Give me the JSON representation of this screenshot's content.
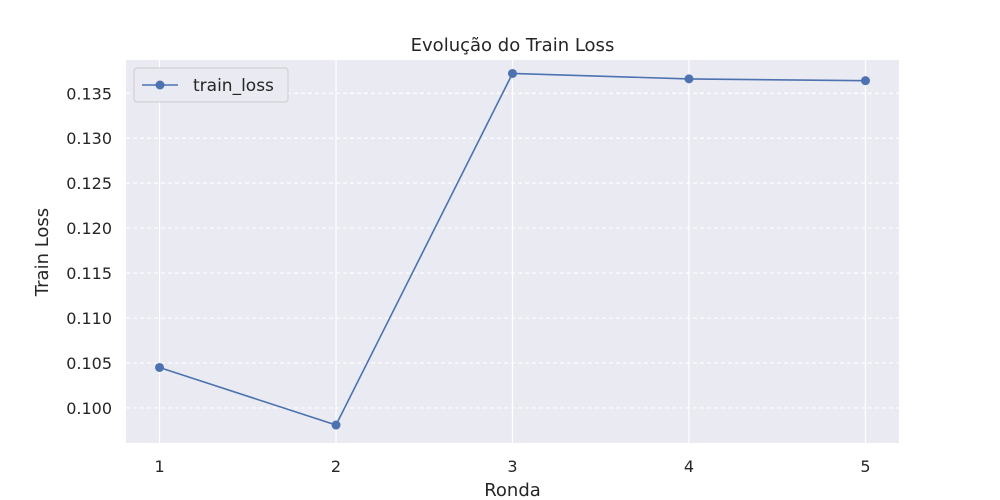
{
  "chart_data": {
    "type": "line",
    "title": "Evolução do Train Loss",
    "xlabel": "Ronda",
    "ylabel": "Train Loss",
    "x": [
      1,
      2,
      3,
      4,
      5
    ],
    "xlim": [
      0.81,
      5.19
    ],
    "ylim": [
      0.0961,
      0.1387
    ],
    "xticks": [
      "1",
      "2",
      "3",
      "4",
      "5"
    ],
    "yticks": [
      "0.100",
      "0.105",
      "0.110",
      "0.115",
      "0.120",
      "0.125",
      "0.130",
      "0.135"
    ],
    "grid": true,
    "legend_position": "top-left",
    "series": [
      {
        "name": "train_loss",
        "color": "#4c72b0",
        "marker": "circle",
        "values": [
          0.1045,
          0.0981,
          0.1372,
          0.1366,
          0.1364
        ]
      }
    ]
  }
}
